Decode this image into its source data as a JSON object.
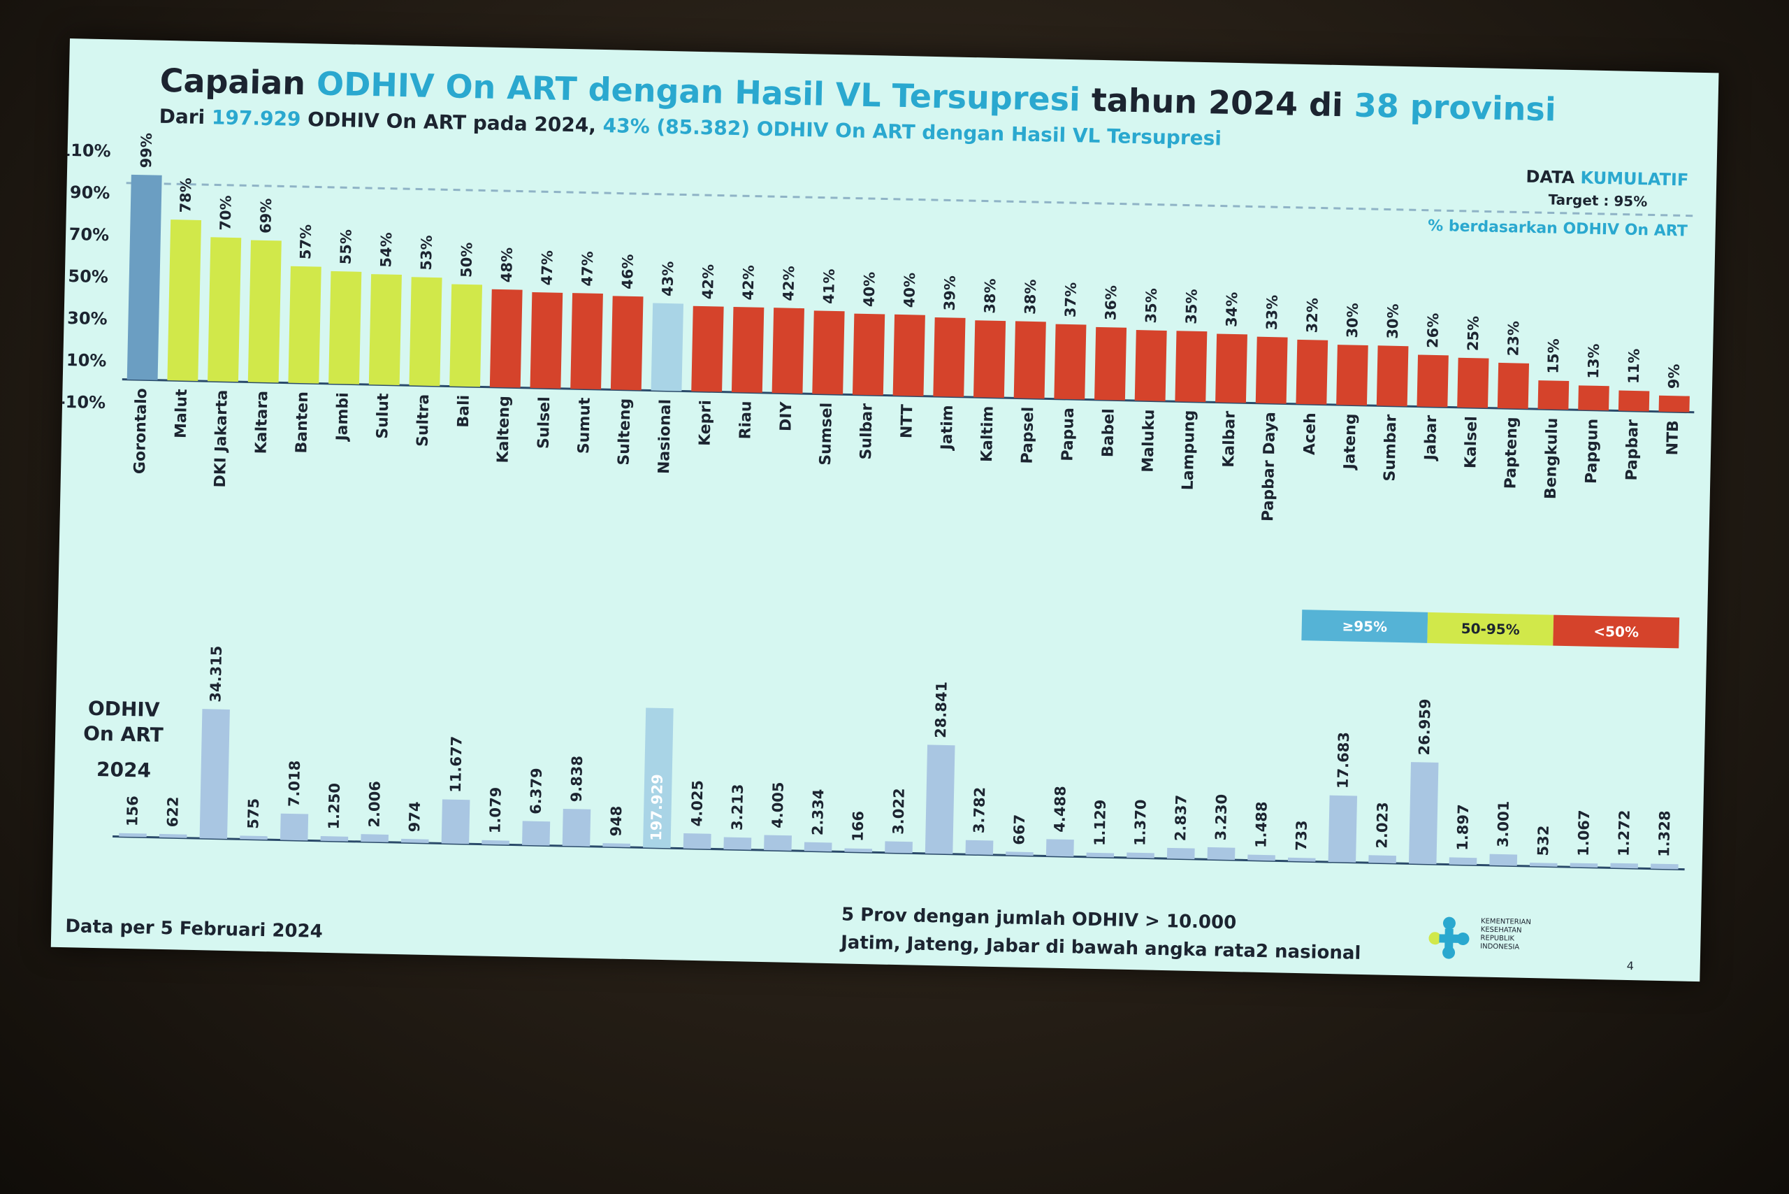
{
  "title": {
    "pre": "Capaian ",
    "acc1": "ODHIV On ART dengan Hasil VL Tersupresi",
    "mid": " tahun 2024 di ",
    "acc2": "38 provinsi"
  },
  "subtitle": {
    "pre": "Dari ",
    "acc1": "197.929",
    "mid": " ODHIV On ART pada 2024, ",
    "acc2": "43% (85.382) ODHIV On ART dengan Hasil VL Tersupresi"
  },
  "data_kumulatif": {
    "a": "DATA ",
    "b": "KUMULATIF"
  },
  "pct_note": "% berdasarkan ODHIV On ART",
  "target_label": "Target : 95%",
  "legend": {
    "blue": "≥95%",
    "yellow": "50-95%",
    "red": "<50%"
  },
  "odhiv_label": {
    "line1": "ODHIV",
    "line2": "On ART",
    "year": "2024"
  },
  "notes": {
    "line1": "5 Prov dengan jumlah ODHIV > 10.000",
    "line2": "Jatim, Jateng, Jabar di bawah angka rata2 nasional"
  },
  "as_of": "Data per 5 Februari 2024",
  "logo_text": [
    "KEMENTERIAN",
    "KESEHATAN",
    "REPUBLIK",
    "INDONESIA"
  ],
  "page_number": "4",
  "colors": {
    "blue": "#6b9ec2",
    "yellow": "#d1e84a",
    "red": "#d5432b",
    "national": "#a9d4e6",
    "bottom_bar": "#a9c6e2"
  },
  "chart_data": [
    {
      "type": "bar",
      "title": "Capaian ODHIV On ART dengan Hasil VL Tersupresi tahun 2024 di 38 provinsi",
      "ylabel": "",
      "ylim": [
        -10,
        110
      ],
      "yticks": [
        "110%",
        "90%",
        "70%",
        "50%",
        "30%",
        "10%",
        "-10%"
      ],
      "target": 95,
      "categories": [
        "Gorontalo",
        "Malut",
        "DKI Jakarta",
        "Kaltara",
        "Banten",
        "Jambi",
        "Sulut",
        "Sultra",
        "Bali",
        "Kalteng",
        "Sulsel",
        "Sumut",
        "Sulteng",
        "Nasional",
        "Kepri",
        "Riau",
        "DIY",
        "Sumsel",
        "Sulbar",
        "NTT",
        "Jatim",
        "Kaltim",
        "Papsel",
        "Papua",
        "Babel",
        "Maluku",
        "Lampung",
        "Kalbar",
        "Papbar Daya",
        "Aceh",
        "Jateng",
        "Sumbar",
        "Jabar",
        "Kalsel",
        "Papteng",
        "Bengkulu",
        "Papgun",
        "Papbar",
        "NTB"
      ],
      "values": [
        99,
        78,
        70,
        69,
        57,
        55,
        54,
        53,
        50,
        48,
        47,
        47,
        46,
        43,
        42,
        42,
        42,
        41,
        40,
        40,
        39,
        38,
        38,
        37,
        36,
        35,
        35,
        34,
        33,
        32,
        30,
        30,
        26,
        25,
        23,
        15,
        13,
        11,
        9
      ],
      "value_labels": [
        "99%",
        "78%",
        "70%",
        "69%",
        "57%",
        "55%",
        "54%",
        "53%",
        "50%",
        "48%",
        "47%",
        "47%",
        "46%",
        "43%",
        "42%",
        "42%",
        "42%",
        "41%",
        "40%",
        "40%",
        "39%",
        "38%",
        "38%",
        "37%",
        "36%",
        "35%",
        "35%",
        "34%",
        "33%",
        "32%",
        "30%",
        "30%",
        "26%",
        "25%",
        "23%",
        "15%",
        "13%",
        "11%",
        "9%"
      ],
      "legend": [
        "≥95%",
        "50-95%",
        "<50%"
      ]
    },
    {
      "type": "bar",
      "title": "ODHIV On ART 2024",
      "categories": [
        "Gorontalo",
        "Malut",
        "DKI Jakarta",
        "Kaltara",
        "Banten",
        "Jambi",
        "Sulut",
        "Sultra",
        "Bali",
        "Kalteng",
        "Sulsel",
        "Sumut",
        "Sulteng",
        "Nasional",
        "Kepri",
        "Riau",
        "DIY",
        "Sumsel",
        "Sulbar",
        "NTT",
        "Jatim",
        "Kaltim",
        "Papsel",
        "Papua",
        "Babel",
        "Maluku",
        "Lampung",
        "Kalbar",
        "Papbar Daya",
        "Aceh",
        "Jateng",
        "Sumbar",
        "Jabar",
        "Kalsel",
        "Papteng",
        "Bengkulu",
        "Papgun",
        "Papbar",
        "NTB"
      ],
      "values": [
        156,
        622,
        34315,
        575,
        7018,
        1250,
        2006,
        974,
        11677,
        1079,
        6379,
        9838,
        948,
        197929,
        4025,
        3213,
        4005,
        2334,
        166,
        3022,
        28841,
        3782,
        667,
        4488,
        1129,
        1370,
        2837,
        3230,
        1488,
        733,
        17683,
        2023,
        26959,
        1897,
        3001,
        532,
        1067,
        1272,
        1328
      ],
      "value_labels": [
        "156",
        "622",
        "34.315",
        "575",
        "7.018",
        "1.250",
        "2.006",
        "974",
        "11.677",
        "1.079",
        "6.379",
        "9.838",
        "948",
        "197.929",
        "4.025",
        "3.213",
        "4.005",
        "2.334",
        "166",
        "3.022",
        "28.841",
        "3.782",
        "667",
        "4.488",
        "1.129",
        "1.370",
        "2.837",
        "3.230",
        "1.488",
        "733",
        "17.683",
        "2.023",
        "26.959",
        "1.897",
        "3.001",
        "532",
        "1.067",
        "1.272",
        "1.328"
      ]
    }
  ]
}
